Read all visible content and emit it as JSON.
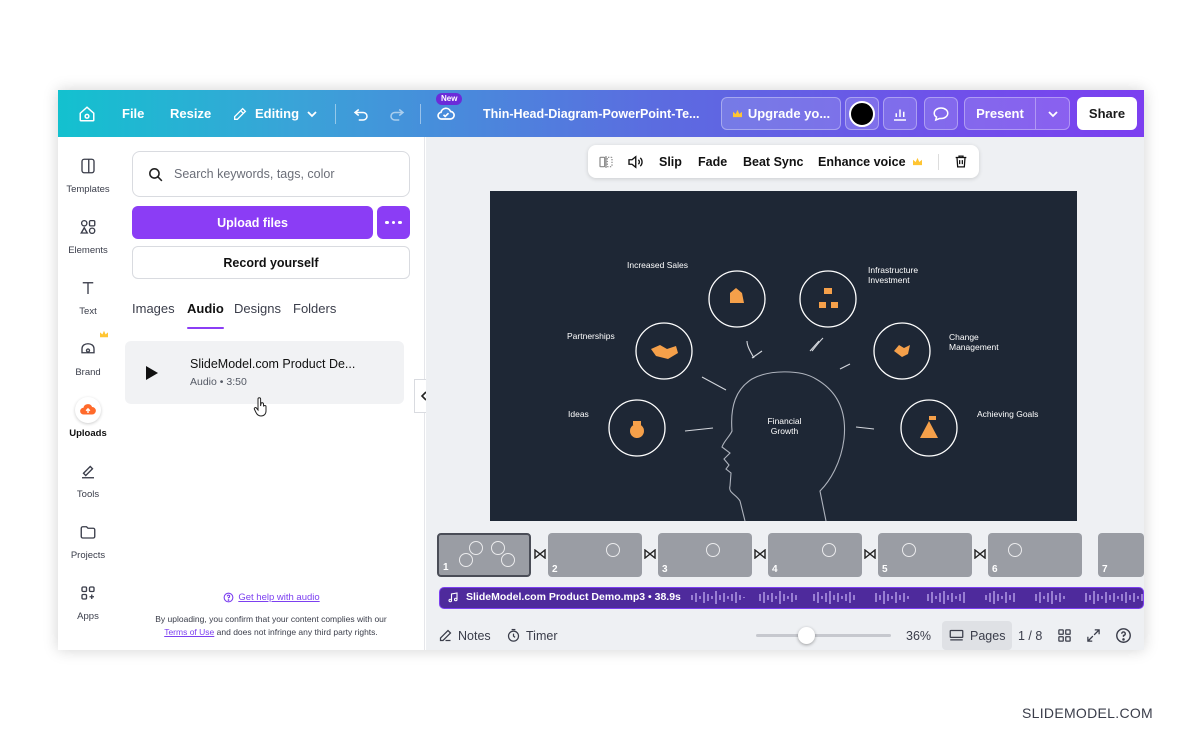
{
  "topbar": {
    "file_label": "File",
    "resize_label": "Resize",
    "editing_label": "Editing",
    "new_badge": "New",
    "doc_title": "Thin-Head-Diagram-PowerPoint-Te...",
    "upgrade_label": "Upgrade yo...",
    "present_label": "Present",
    "share_label": "Share"
  },
  "rail": {
    "items": [
      {
        "label": "Templates",
        "icon": "templates-icon"
      },
      {
        "label": "Elements",
        "icon": "elements-icon"
      },
      {
        "label": "Text",
        "icon": "text-icon"
      },
      {
        "label": "Brand",
        "icon": "brand-icon"
      },
      {
        "label": "Uploads",
        "icon": "uploads-icon"
      },
      {
        "label": "Tools",
        "icon": "tools-icon"
      },
      {
        "label": "Projects",
        "icon": "projects-icon"
      },
      {
        "label": "Apps",
        "icon": "apps-icon"
      }
    ]
  },
  "panel": {
    "search_placeholder": "Search keywords, tags, color",
    "upload_label": "Upload files",
    "record_label": "Record yourself",
    "tabs": [
      "Images",
      "Audio",
      "Designs",
      "Folders"
    ],
    "active_tab": "Audio",
    "audio_item": {
      "title": "SlideModel.com Product De...",
      "meta": "Audio • 3:50"
    },
    "help_link": "Get help with audio",
    "disclaimer_pre": "By uploading, you confirm that your content complies with our",
    "terms_link": "Terms of Use",
    "disclaimer_post": "and does not infringe any third party rights."
  },
  "context_toolbar": {
    "slip": "Slip",
    "fade": "Fade",
    "beat_sync": "Beat Sync",
    "enhance_voice": "Enhance voice"
  },
  "slide": {
    "center_label_1": "Financial",
    "center_label_2": "Growth",
    "labels": {
      "increased_sales": "Increased Sales",
      "infrastructure_1": "Infrastructure",
      "infrastructure_2": "Investment",
      "partnerships": "Partnerships",
      "change_1": "Change",
      "change_2": "Management",
      "ideas": "Ideas",
      "achieving_goals": "Achieving Goals"
    }
  },
  "timeline": {
    "pages": [
      "1",
      "2",
      "3",
      "4",
      "5",
      "6",
      "7"
    ],
    "audio_track_label": "SlideModel.com Product Demo.mp3 • 38.9s"
  },
  "bottom": {
    "notes": "Notes",
    "timer": "Timer",
    "zoom": "36%",
    "zoom_level": 0.36,
    "pages_label": "Pages",
    "page_count": "1 / 8"
  },
  "watermark": "SLIDEMODEL.COM",
  "colors": {
    "accent": "#8b3df5",
    "slide_bg": "#1e2735",
    "slide_orange": "#f5a04a",
    "audio_track": "#4e2a9c"
  }
}
